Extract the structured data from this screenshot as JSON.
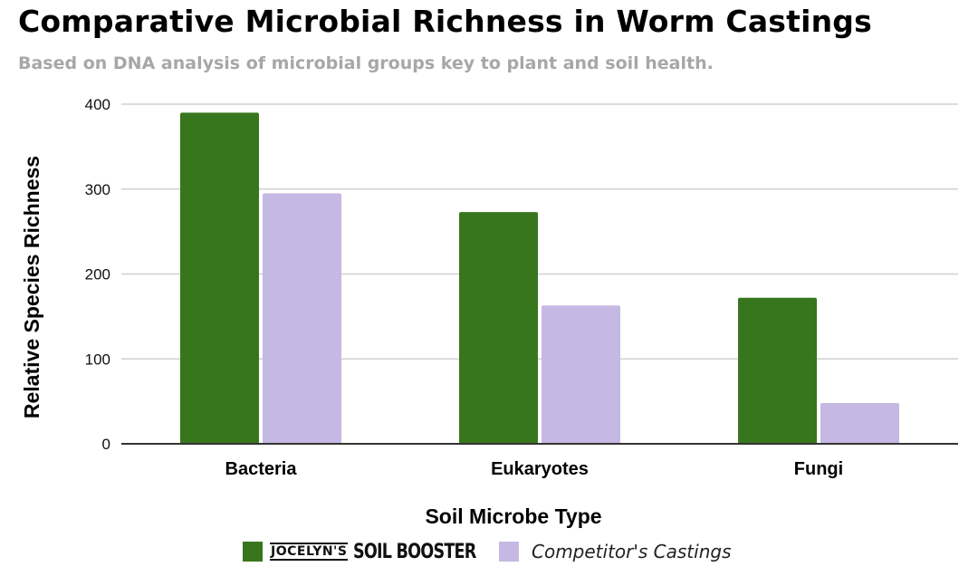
{
  "header": {
    "title": "Comparative Microbial Richness in Worm Castings",
    "subtitle": "Based on DNA analysis of microbial groups key to plant and soil health."
  },
  "legend": {
    "brand_small": "JOCELYN'S",
    "brand_big": "SOIL BOOSTER",
    "competitor": "Competitor's Castings"
  },
  "colors": {
    "soil_booster": "#38761d",
    "competitor": "#c5b8e2",
    "grid": "#d0d0d0",
    "axis": "#333333"
  },
  "chart_data": {
    "type": "bar",
    "title": "Comparative Microbial Richness in Worm Castings",
    "subtitle": "Based on DNA analysis of microbial groups key to plant and soil health.",
    "xlabel": "Soil Microbe Type",
    "ylabel": "Relative Species Richness",
    "categories": [
      "Bacteria",
      "Eukaryotes",
      "Fungi"
    ],
    "series": [
      {
        "name": "JOCELYN'S SOIL BOOSTER",
        "values": [
          390,
          273,
          172
        ]
      },
      {
        "name": "Competitor's Castings",
        "values": [
          295,
          163,
          48
        ]
      }
    ],
    "ylim": [
      0,
      400
    ],
    "yticks": [
      0,
      100,
      200,
      300,
      400
    ],
    "grid": true,
    "legend_position": "bottom"
  }
}
